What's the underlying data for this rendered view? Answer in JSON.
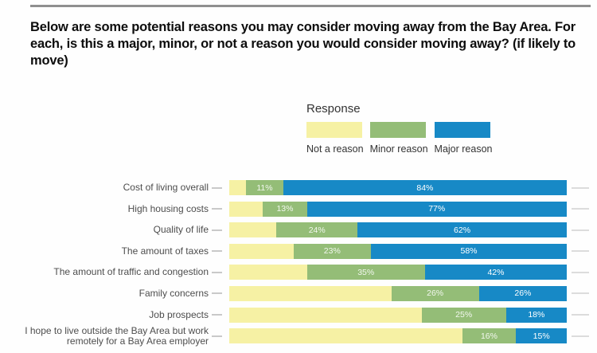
{
  "title": "Below are some potential reasons you may consider moving away from the Bay Area. For each, is this a major, minor, or not a reason you would consider moving away? (if likely to move)",
  "legend": {
    "title": "Response",
    "items": [
      {
        "label": "Not a reason",
        "color": "#f6f1a4"
      },
      {
        "label": "Minor reason",
        "color": "#94bd77"
      },
      {
        "label": "Major reason",
        "color": "#1789c6"
      }
    ]
  },
  "chart_data": {
    "type": "bar",
    "orientation": "horizontal",
    "stacked": true,
    "unit": "%",
    "xlim": [
      0,
      100
    ],
    "grid": false,
    "legend_position": "top-center",
    "categories": [
      "Cost of living overall",
      "High housing costs",
      "Quality of life",
      "The amount of taxes",
      "The amount of traffic and congestion",
      "Family concerns",
      "Job prospects",
      "I hope to live outside the Bay Area but work remotely for a Bay Area employer"
    ],
    "series": [
      {
        "name": "Not a reason",
        "color": "#f6f1a4",
        "data_labels": false,
        "values": [
          5,
          10,
          14,
          19,
          23,
          48,
          57,
          69
        ]
      },
      {
        "name": "Minor reason",
        "color": "#94bd77",
        "data_labels": true,
        "values": [
          11,
          13,
          24,
          23,
          35,
          26,
          25,
          16
        ]
      },
      {
        "name": "Major reason",
        "color": "#1789c6",
        "data_labels": true,
        "values": [
          84,
          77,
          62,
          58,
          42,
          26,
          18,
          15
        ]
      }
    ]
  }
}
